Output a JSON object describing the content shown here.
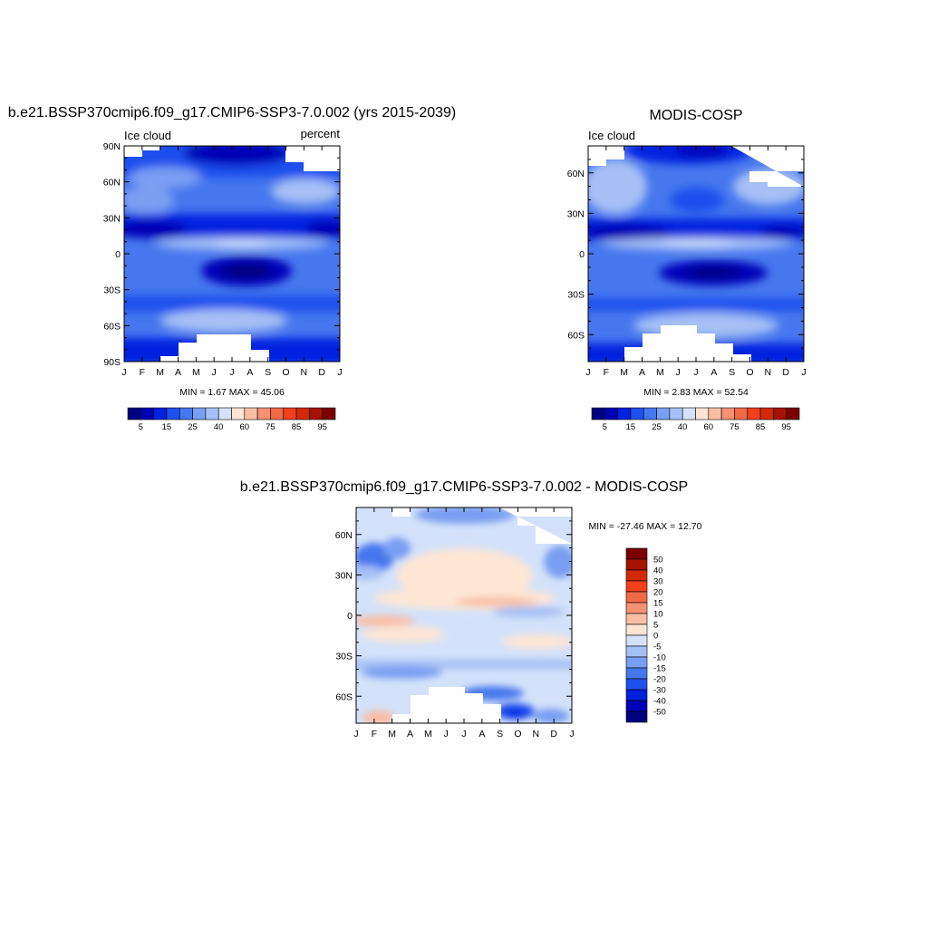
{
  "palette": [
    "#00007f",
    "#0000b6",
    "#0020e0",
    "#1e50ee",
    "#4677ee",
    "#799ef2",
    "#a6c0f5",
    "#d3e2fa",
    "#fde5d4",
    "#f9bea4",
    "#f49273",
    "#f16a46",
    "#f0401c",
    "#d22a08",
    "#a61200",
    "#7d0000"
  ],
  "panels": [
    {
      "title": "b.e21.BSSP370cmip6.f09_g17.CMIP6-SSP3-7.0.002 (yrs 2015-2039)",
      "left_label": "Ice cloud",
      "right_label": "percent",
      "stats": "MIN =   1.67 MAX =  45.06",
      "xticks": [
        "J",
        "F",
        "M",
        "A",
        "M",
        "J",
        "J",
        "A",
        "S",
        "O",
        "N",
        "D",
        "J"
      ],
      "yticks": [
        "90N",
        "60N",
        "30N",
        "0",
        "30S",
        "60S",
        "90S"
      ],
      "colorbar_labels": [
        "5",
        "15",
        "25",
        "40",
        "60",
        "75",
        "85",
        "95"
      ]
    },
    {
      "title": "MODIS-COSP",
      "left_label": "Ice cloud",
      "right_label": "",
      "stats": "MIN =   2.83 MAX =  52.54",
      "xticks": [
        "J",
        "F",
        "M",
        "A",
        "M",
        "J",
        "J",
        "A",
        "S",
        "O",
        "N",
        "D",
        "J"
      ],
      "yticks": [
        "60N",
        "30N",
        "0",
        "30S",
        "60S"
      ],
      "colorbar_labels": [
        "5",
        "15",
        "25",
        "40",
        "60",
        "75",
        "85",
        "95"
      ]
    },
    {
      "title": "b.e21.BSSP370cmip6.f09_g17.CMIP6-SSP3-7.0.002 - MODIS-COSP",
      "left_label": "",
      "right_label": "",
      "stats": "MIN = -27.46 MAX =  12.70",
      "xticks": [
        "J",
        "F",
        "M",
        "A",
        "M",
        "J",
        "J",
        "A",
        "S",
        "O",
        "N",
        "D",
        "J"
      ],
      "yticks": [
        "60N",
        "30N",
        "0",
        "30S",
        "60S"
      ],
      "colorbar_labels": [
        "50",
        "40",
        "30",
        "20",
        "15",
        "10",
        "5",
        "0",
        "-5",
        "-10",
        "-15",
        "-20",
        "-30",
        "-40",
        "-50"
      ]
    }
  ],
  "chart_data": [
    {
      "type": "heatmap",
      "title": "b.e21.BSSP370cmip6.f09_g17.CMIP6-SSP3-7.0.002 (yrs 2015-2039)",
      "variable": "Ice cloud",
      "units": "percent",
      "x_categories": [
        "J",
        "F",
        "M",
        "A",
        "M",
        "J",
        "J",
        "A",
        "S",
        "O",
        "N",
        "D",
        "J"
      ],
      "ylim": [
        -90,
        90
      ],
      "min": 1.67,
      "max": 45.06,
      "contour_levels": [
        5,
        10,
        15,
        20,
        25,
        30,
        40,
        50,
        60,
        70,
        75,
        80,
        85,
        90,
        95
      ],
      "latitudes": [
        -80,
        -60,
        -40,
        -20,
        -10,
        0,
        10,
        20,
        40,
        60,
        80
      ],
      "values": [
        [
          14,
          15,
          16,
          17,
          18,
          19,
          20,
          20,
          19,
          18,
          16,
          15,
          14
        ],
        [
          28,
          29,
          30,
          31,
          32,
          33,
          33,
          33,
          31,
          30,
          29,
          28,
          28
        ],
        [
          22,
          21,
          20,
          19,
          18,
          17,
          16,
          16,
          17,
          18,
          20,
          21,
          22
        ],
        [
          12,
          12,
          11,
          10,
          9,
          8,
          7,
          7,
          8,
          9,
          11,
          12,
          12
        ],
        [
          17,
          16,
          15,
          14,
          14,
          15,
          16,
          17,
          18,
          17,
          17,
          16,
          17
        ],
        [
          26,
          25,
          24,
          23,
          23,
          24,
          26,
          27,
          27,
          26,
          26,
          25,
          26
        ],
        [
          35,
          34,
          33,
          32,
          31,
          30,
          29,
          29,
          30,
          31,
          32,
          34,
          35
        ],
        [
          12,
          12,
          13,
          14,
          16,
          18,
          20,
          20,
          18,
          16,
          14,
          13,
          12
        ],
        [
          20,
          20,
          21,
          22,
          23,
          24,
          25,
          25,
          24,
          23,
          22,
          21,
          20
        ],
        [
          26,
          26,
          25,
          24,
          22,
          21,
          20,
          20,
          21,
          22,
          24,
          25,
          26
        ],
        [
          19,
          17,
          14,
          12,
          10,
          7,
          5,
          6,
          8,
          12,
          16,
          18,
          19
        ]
      ]
    },
    {
      "type": "heatmap",
      "title": "MODIS-COSP",
      "variable": "Ice cloud",
      "x_categories": [
        "J",
        "F",
        "M",
        "A",
        "M",
        "J",
        "J",
        "A",
        "S",
        "O",
        "N",
        "D",
        "J"
      ],
      "ylim": [
        -80,
        80
      ],
      "min": 2.83,
      "max": 52.54,
      "contour_levels": [
        5,
        10,
        15,
        20,
        25,
        30,
        40,
        50,
        60,
        70,
        75,
        80,
        85,
        90,
        95
      ],
      "latitudes": [
        -80,
        -60,
        -40,
        -20,
        -10,
        0,
        10,
        20,
        40,
        60,
        80
      ],
      "values": [
        [
          10,
          12,
          14,
          16,
          18,
          20,
          22,
          22,
          20,
          17,
          14,
          12,
          10
        ],
        [
          32,
          33,
          34,
          35,
          35,
          35,
          34,
          34,
          33,
          32,
          31,
          31,
          32
        ],
        [
          21,
          20,
          19,
          18,
          17,
          16,
          15,
          15,
          16,
          18,
          19,
          20,
          21
        ],
        [
          11,
          11,
          10,
          9,
          8,
          7,
          6,
          6,
          7,
          8,
          10,
          11,
          11
        ],
        [
          18,
          17,
          16,
          15,
          15,
          16,
          17,
          18,
          18,
          18,
          18,
          17,
          18
        ],
        [
          25,
          25,
          24,
          24,
          25,
          26,
          27,
          28,
          28,
          27,
          26,
          25,
          25
        ],
        [
          34,
          33,
          32,
          31,
          30,
          29,
          28,
          28,
          29,
          30,
          31,
          33,
          34
        ],
        [
          14,
          14,
          15,
          16,
          18,
          20,
          22,
          22,
          20,
          18,
          16,
          15,
          14
        ],
        [
          22,
          22,
          23,
          24,
          25,
          26,
          27,
          27,
          26,
          25,
          24,
          23,
          22
        ],
        [
          30,
          30,
          29,
          28,
          27,
          26,
          25,
          25,
          26,
          27,
          28,
          29,
          30
        ],
        [
          20,
          18,
          15,
          13,
          11,
          9,
          8,
          9,
          10,
          13,
          16,
          18,
          20
        ]
      ]
    },
    {
      "type": "heatmap",
      "title": "b.e21.BSSP370cmip6.f09_g17.CMIP6-SSP3-7.0.002 - MODIS-COSP",
      "x_categories": [
        "J",
        "F",
        "M",
        "A",
        "M",
        "J",
        "J",
        "A",
        "S",
        "O",
        "N",
        "D",
        "J"
      ],
      "ylim": [
        -80,
        80
      ],
      "min": -27.46,
      "max": 12.7,
      "contour_levels": [
        -50,
        -40,
        -30,
        -20,
        -15,
        -10,
        -5,
        0,
        5,
        10,
        15,
        20,
        30,
        40,
        50
      ],
      "latitudes": [
        -80,
        -60,
        -40,
        -20,
        -10,
        0,
        10,
        20,
        40,
        60,
        80
      ],
      "values": [
        [
          2,
          1,
          0,
          -1,
          -2,
          -1,
          -3,
          -6,
          -14,
          -10,
          -3,
          -1,
          2
        ],
        [
          -4,
          -4,
          -5,
          -6,
          -5,
          -4,
          -4,
          -5,
          -5,
          -4,
          -3,
          -3,
          -4
        ],
        [
          -6,
          -6,
          -5,
          -4,
          -3,
          -2,
          -2,
          -2,
          -2,
          -2,
          -3,
          -4,
          -6
        ],
        [
          -2,
          -1,
          0,
          1,
          2,
          2,
          3,
          3,
          3,
          2,
          1,
          -1,
          -2
        ],
        [
          -1,
          -1,
          -2,
          -2,
          -3,
          -3,
          -3,
          -3,
          -2,
          -2,
          -1,
          -1,
          -1
        ],
        [
          3,
          4,
          4,
          5,
          4,
          3,
          2,
          2,
          2,
          2,
          3,
          3,
          3
        ],
        [
          -3,
          -3,
          -2,
          -1,
          0,
          2,
          3,
          4,
          3,
          1,
          -1,
          -2,
          -3
        ],
        [
          -4,
          -4,
          -3,
          -2,
          -1,
          1,
          2,
          3,
          2,
          0,
          -2,
          -3,
          -4
        ],
        [
          -6,
          -5,
          -4,
          -3,
          -1,
          0,
          1,
          1,
          0,
          -1,
          -3,
          -5,
          -6
        ],
        [
          -12,
          -10,
          -7,
          -5,
          -4,
          -3,
          -3,
          -3,
          -4,
          -5,
          -7,
          -10,
          -12
        ],
        [
          -4,
          -4,
          -5,
          -6,
          -7,
          -8,
          -9,
          -9,
          -8,
          -6,
          -5,
          -4,
          -4
        ]
      ]
    }
  ]
}
